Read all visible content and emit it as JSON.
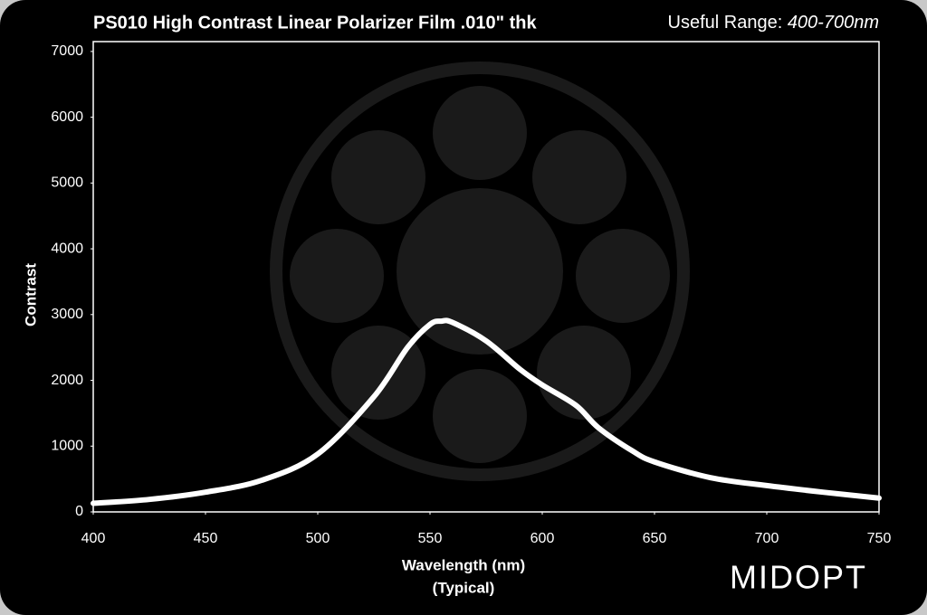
{
  "chart_data": {
    "type": "line",
    "title": "PS010 High Contrast Linear Polarizer Film .010\" thk",
    "range_label": "Useful Range: ",
    "range_value": "400-700nm",
    "x_label": "Wavelength (nm)",
    "x_sublabel": "(Typical)",
    "y_label": "Contrast",
    "logo": "MIDOPT",
    "x": [
      400,
      425,
      450,
      475,
      500,
      525,
      540,
      550,
      555,
      560,
      575,
      590,
      600,
      615,
      625,
      640,
      650,
      675,
      700,
      725,
      750
    ],
    "series": [
      {
        "color": "#ffffff",
        "values": [
          130,
          190,
          300,
          480,
          880,
          1750,
          2500,
          2850,
          2900,
          2880,
          2600,
          2170,
          1930,
          1620,
          1280,
          930,
          760,
          520,
          400,
          300,
          210
        ]
      }
    ],
    "xlim": [
      400,
      750
    ],
    "xticks": [
      400,
      450,
      500,
      550,
      600,
      650,
      700,
      750
    ],
    "ylim": [
      0,
      7150
    ],
    "yticks": [
      0,
      1000,
      2000,
      3000,
      4000,
      5000,
      6000,
      7000
    ]
  }
}
